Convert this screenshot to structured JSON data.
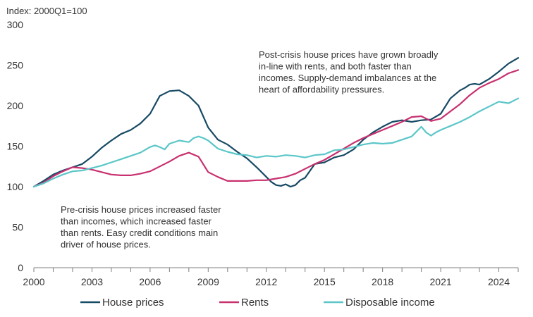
{
  "chart_data": {
    "type": "line",
    "ylabel": "Index: 2000Q1=100",
    "xlim": [
      2000,
      2025.0
    ],
    "ylim": [
      0,
      300
    ],
    "yticks": [
      0,
      50,
      100,
      150,
      200,
      250,
      300
    ],
    "xticks": [
      2000,
      2003,
      2006,
      2009,
      2012,
      2015,
      2018,
      2021,
      2024
    ],
    "grid": false,
    "legend_position": "bottom",
    "series": [
      {
        "name": "House prices",
        "color": "#174a64",
        "x": [
          2000,
          2000.5,
          2001,
          2001.5,
          2002,
          2002.5,
          2003,
          2003.5,
          2004,
          2004.5,
          2005,
          2005.5,
          2006,
          2006.5,
          2007,
          2007.5,
          2008,
          2008.5,
          2009,
          2009.5,
          2010,
          2010.5,
          2011,
          2011.5,
          2012,
          2012.25,
          2012.5,
          2012.75,
          2013,
          2013.25,
          2013.5,
          2013.75,
          2014,
          2014.5,
          2015,
          2015.5,
          2016,
          2016.5,
          2017,
          2017.5,
          2018,
          2018.5,
          2019,
          2019.5,
          2020,
          2020.5,
          2021,
          2021.5,
          2022,
          2022.25,
          2022.5,
          2022.75,
          2023,
          2023.5,
          2024,
          2024.5,
          2025
        ],
        "values": [
          100,
          107,
          115,
          120,
          124,
          128,
          137,
          148,
          157,
          165,
          170,
          178,
          190,
          212,
          218,
          219,
          212,
          200,
          173,
          158,
          152,
          143,
          135,
          124,
          112,
          106,
          102,
          101,
          103,
          100,
          102,
          108,
          111,
          128,
          130,
          136,
          139,
          146,
          158,
          167,
          174,
          180,
          182,
          180,
          182,
          183,
          190,
          209,
          219,
          222,
          226,
          227,
          226,
          233,
          242,
          252,
          259
        ]
      },
      {
        "name": "Rents",
        "color": "#c8306f",
        "x": [
          2000,
          2000.5,
          2001,
          2001.5,
          2002,
          2002.5,
          2003,
          2003.5,
          2004,
          2004.5,
          2005,
          2005.5,
          2006,
          2006.5,
          2007,
          2007.5,
          2008,
          2008.5,
          2009,
          2009.5,
          2010,
          2010.5,
          2011,
          2011.5,
          2012,
          2012.5,
          2013,
          2013.5,
          2014,
          2014.5,
          2015,
          2015.5,
          2016,
          2016.5,
          2017,
          2017.5,
          2018,
          2018.5,
          2019,
          2019.5,
          2020,
          2020.5,
          2021,
          2021.5,
          2022,
          2022.5,
          2023,
          2023.5,
          2024,
          2024.5,
          2025
        ],
        "values": [
          100,
          105,
          113,
          119,
          124,
          123,
          121,
          118,
          115,
          114,
          114,
          116,
          119,
          125,
          131,
          138,
          142,
          137,
          118,
          112,
          107,
          107,
          107,
          108,
          108,
          110,
          112,
          116,
          122,
          128,
          133,
          140,
          147,
          154,
          160,
          165,
          170,
          175,
          180,
          186,
          187,
          181,
          184,
          193,
          202,
          213,
          222,
          228,
          233,
          240,
          244
        ]
      },
      {
        "name": "Disposable income",
        "color": "#5bc6c8",
        "x": [
          2000,
          2000.5,
          2001,
          2001.5,
          2002,
          2002.5,
          2003,
          2003.5,
          2004,
          2004.5,
          2005,
          2005.5,
          2006,
          2006.25,
          2006.5,
          2006.75,
          2007,
          2007.5,
          2008,
          2008.25,
          2008.5,
          2008.75,
          2009,
          2009.5,
          2010,
          2010.5,
          2011,
          2011.5,
          2012,
          2012.5,
          2013,
          2013.5,
          2014,
          2014.5,
          2015,
          2015.5,
          2016,
          2016.5,
          2017,
          2017.5,
          2018,
          2018.5,
          2019,
          2019.5,
          2020,
          2020.25,
          2020.5,
          2020.75,
          2021,
          2021.5,
          2022,
          2022.5,
          2023,
          2023.5,
          2024,
          2024.5,
          2025
        ],
        "values": [
          100,
          104,
          110,
          115,
          119,
          120,
          123,
          126,
          130,
          134,
          138,
          142,
          149,
          151,
          149,
          146,
          153,
          157,
          155,
          160,
          162,
          160,
          157,
          147,
          143,
          140,
          139,
          136,
          138,
          137,
          139,
          138,
          136,
          139,
          140,
          145,
          146,
          149,
          152,
          154,
          153,
          154,
          158,
          162,
          174,
          167,
          163,
          167,
          170,
          175,
          180,
          186,
          193,
          199,
          205,
          203,
          209
        ]
      }
    ],
    "annotations": [
      {
        "lines": [
          "Post-crisis house prices have grown broadly",
          "in-line with rents, and both faster than",
          "incomes. Supply-demand imbalances at the",
          "heart of   affordability pressures."
        ]
      },
      {
        "lines": [
          "Pre-crisis house prices increased faster",
          "than incomes, which increased faster",
          "than rents. Easy credit conditions  main",
          "driver of house prices."
        ]
      }
    ]
  }
}
